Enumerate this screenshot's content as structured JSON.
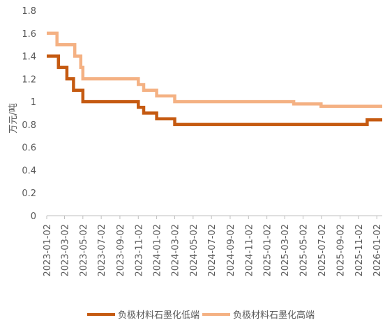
{
  "chart_data": {
    "type": "line",
    "title": "",
    "xlabel": "",
    "ylabel": "万元/吨",
    "ylim": [
      0,
      1.8
    ],
    "yticks": [
      "0",
      "0.2",
      "0.4",
      "0.6",
      "0.8",
      "1",
      "1.2",
      "1.4",
      "1.6",
      "1.8"
    ],
    "xticks": [
      "2023-01-02",
      "2023-03-02",
      "2023-05-02",
      "2023-07-02",
      "2023-09-02",
      "2023-11-02",
      "2024-01-02",
      "2024-03-02",
      "2024-05-02",
      "2024-07-02",
      "2024-09-02",
      "2024-11-02",
      "2025-01-02",
      "2025-03-02",
      "2025-05-02",
      "2025-07-02",
      "2025-09-02",
      "2025-11-02",
      "2026-01-02"
    ],
    "xlim": [
      "2023-01-02",
      "2026-01-20"
    ],
    "step": true,
    "grid": false,
    "legend_position": "bottom",
    "series": [
      {
        "name": "负极材料石墨化低端",
        "color": "#C55A11",
        "points": [
          [
            "2023-01-02",
            1.4
          ],
          [
            "2023-02-10",
            1.3
          ],
          [
            "2023-03-10",
            1.2
          ],
          [
            "2023-04-01",
            1.1
          ],
          [
            "2023-05-02",
            1.0
          ],
          [
            "2023-11-02",
            0.95
          ],
          [
            "2023-11-20",
            0.9
          ],
          [
            "2024-01-02",
            0.85
          ],
          [
            "2024-03-02",
            0.8
          ],
          [
            "2025-12-01",
            0.84
          ],
          [
            "2026-01-20",
            0.84
          ]
        ]
      },
      {
        "name": "负极材料石墨化高端",
        "color": "#F4B183",
        "points": [
          [
            "2023-01-02",
            1.6
          ],
          [
            "2023-02-05",
            1.5
          ],
          [
            "2023-04-05",
            1.4
          ],
          [
            "2023-04-25",
            1.3
          ],
          [
            "2023-05-02",
            1.2
          ],
          [
            "2023-11-02",
            1.15
          ],
          [
            "2023-11-20",
            1.1
          ],
          [
            "2024-01-02",
            1.05
          ],
          [
            "2024-03-02",
            1.0
          ],
          [
            "2025-04-01",
            0.98
          ],
          [
            "2025-07-01",
            0.96
          ],
          [
            "2026-01-20",
            0.96
          ]
        ]
      }
    ]
  }
}
